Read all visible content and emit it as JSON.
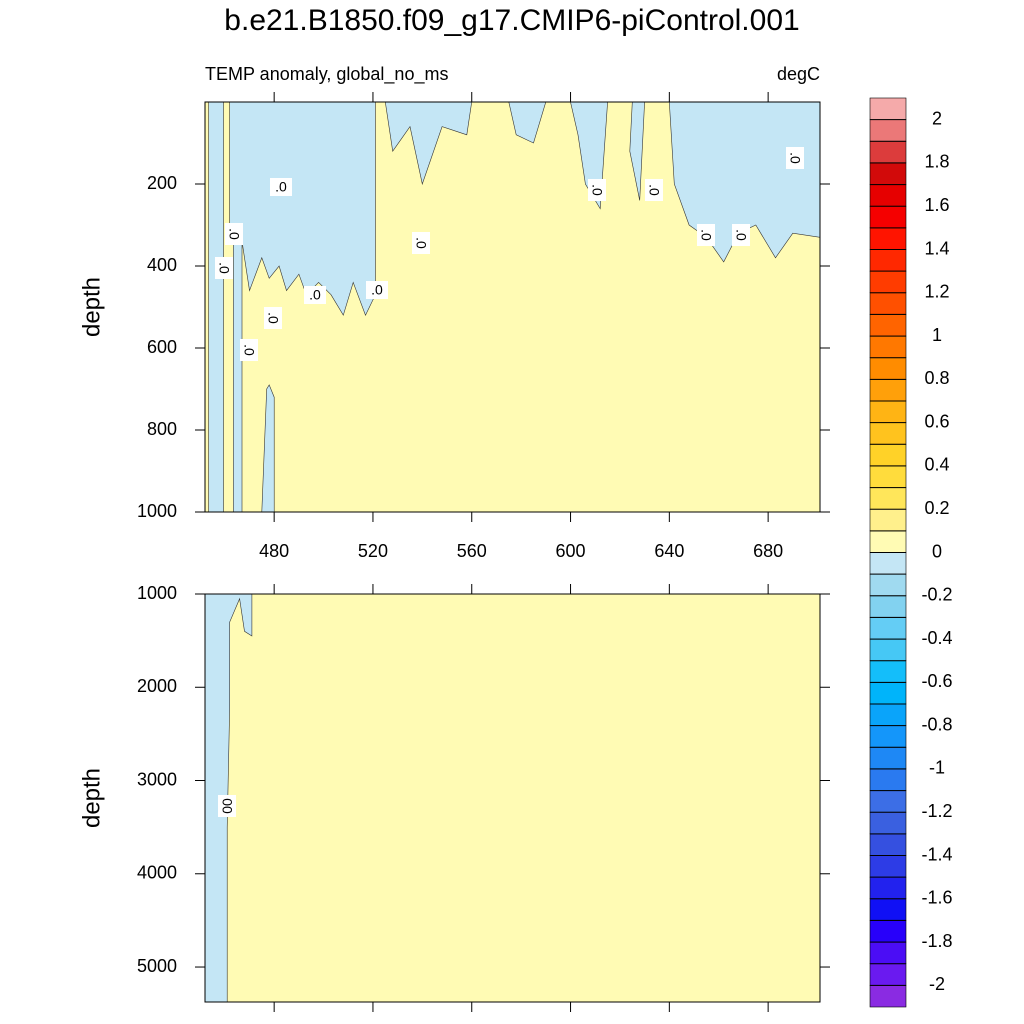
{
  "chart_data": {
    "type": "contour",
    "title": "b.e21.B1850.f09_g17.CMIP6-piControl.001",
    "left_string": "TEMP anomaly, global_no_ms",
    "right_string": "degC",
    "xlim": [
      452,
      701
    ],
    "xticks": [
      480,
      520,
      560,
      600,
      640,
      680
    ],
    "y_reversed": true,
    "panels": [
      {
        "ylabel": "depth",
        "ylim": [
          0,
          1000
        ],
        "yticks": [
          200,
          400,
          600,
          800,
          1000
        ],
        "background_color": "#FFFBB4",
        "x_tick_labels": true,
        "regions": [
          {
            "color": "#C4E6F5",
            "x": [
              453.5,
              459.5,
              459.5,
              453.5
            ],
            "y": [
              0,
              0,
              1000,
              1000
            ]
          },
          {
            "color": "#C4E6F5",
            "x": [
              463.5,
              467,
              467,
              463.5
            ],
            "y": [
              300,
              300,
              1000,
              1000
            ]
          },
          {
            "color": "#C4E6F5",
            "x": [
              475,
              477,
              478,
              480,
              480
            ],
            "y": [
              1000,
              700,
              690,
              720,
              1000
            ]
          },
          {
            "color": "#C4E6F5",
            "x": [
              462,
              521,
              521,
              517,
              512,
              508,
              503,
              498,
              493,
              490,
              485,
              482,
              478,
              475,
              470,
              468,
              466,
              462
            ],
            "y": [
              0,
              0,
              470,
              520,
              440,
              520,
              470,
              440,
              470,
              420,
              460,
              400,
              430,
              380,
              460,
              380,
              300,
              300
            ]
          },
          {
            "color": "#C4E6F5",
            "x": [
              525,
              560,
              558,
              548,
              540,
              535,
              528
            ],
            "y": [
              0,
              0,
              80,
              60,
              200,
              60,
              120
            ]
          },
          {
            "color": "#C4E6F5",
            "x": [
              575,
              590,
              585,
              578
            ],
            "y": [
              0,
              0,
              100,
              80
            ]
          },
          {
            "color": "#C4E6F5",
            "x": [
              600,
              615,
              612,
              606,
              603
            ],
            "y": [
              0,
              0,
              260,
              200,
              80
            ]
          },
          {
            "color": "#C4E6F5",
            "x": [
              625,
              630,
              628,
              624
            ],
            "y": [
              0,
              0,
              240,
              120
            ]
          },
          {
            "color": "#C4E6F5",
            "x": [
              640,
              701,
              701,
              690,
              683,
              675,
              668,
              662,
              655,
              648,
              642
            ],
            "y": [
              0,
              0,
              330,
              320,
              380,
              300,
              320,
              390,
              330,
              300,
              200
            ]
          }
        ],
        "contour_labels": [
          ".0",
          ".0",
          ".0",
          ".0",
          ".0",
          ".0",
          ".0",
          ".0",
          ".0",
          ".0",
          ".0",
          ".0",
          ".0"
        ]
      },
      {
        "ylabel": "depth",
        "ylim": [
          1000,
          5375
        ],
        "yticks": [
          1000,
          2000,
          3000,
          4000,
          5000
        ],
        "background_color": "#FFFBB4",
        "x_tick_labels": false,
        "regions": [
          {
            "color": "#C4E6F5",
            "x": [
              452,
              471,
              471,
              468,
              466,
              462,
              462,
              461,
              461,
              452
            ],
            "y": [
              1000,
              1000,
              1450,
              1400,
              1050,
              1300,
              2200,
              3500,
              5375,
              5375
            ]
          }
        ],
        "contour_labels": [
          "00"
        ]
      }
    ],
    "colorbar": {
      "levels": [
        -2,
        -1.9,
        -1.8,
        -1.7,
        -1.6,
        -1.5,
        -1.4,
        -1.3,
        -1.2,
        -1.1,
        -1,
        -0.9,
        -0.8,
        -0.7,
        -0.6,
        -0.5,
        -0.4,
        -0.3,
        -0.2,
        -0.1,
        0,
        0.1,
        0.2,
        0.3,
        0.4,
        0.5,
        0.6,
        0.7,
        0.8,
        0.9,
        1,
        1.1,
        1.2,
        1.3,
        1.4,
        1.5,
        1.6,
        1.7,
        1.8,
        1.9,
        2
      ],
      "colors": [
        "#8A2BE2",
        "#6A1AF0",
        "#4B0DF5",
        "#2800FA",
        "#1010F5",
        "#2222EE",
        "#2D3CE6",
        "#3550E0",
        "#3A60E0",
        "#3C6EE6",
        "#2A7AF0",
        "#1E88F5",
        "#1496FA",
        "#0AA4FA",
        "#00B4FA",
        "#14BEFA",
        "#46C8F5",
        "#64CDF5",
        "#82D2F0",
        "#A0DAF0",
        "#C4E6F5",
        "#FFFBB4",
        "#FFF08C",
        "#FFE65A",
        "#FFDC3C",
        "#FFD228",
        "#FFC31E",
        "#FFB414",
        "#FFA00A",
        "#FF8C00",
        "#FF7800",
        "#FF6400",
        "#FF5000",
        "#FF3C00",
        "#FF2800",
        "#FF1400",
        "#F50000",
        "#E60000",
        "#D20A0A",
        "#DC3C3C",
        "#EB7878",
        "#F5AAAA"
      ],
      "ticks": [
        2,
        1.8,
        1.6,
        1.4,
        1.2,
        1,
        0.8,
        0.6,
        0.4,
        0.2,
        0,
        -0.2,
        -0.4,
        -0.6,
        -0.8,
        -1,
        -1.2,
        -1.4,
        -1.6,
        -1.8,
        -2
      ]
    }
  }
}
